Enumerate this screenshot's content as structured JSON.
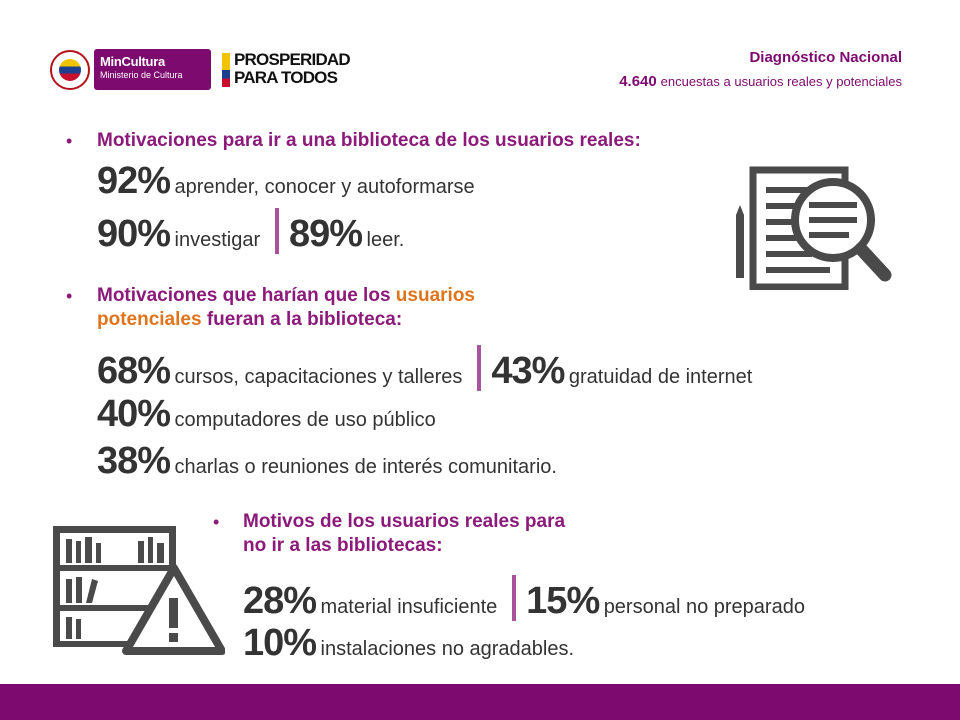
{
  "header": {
    "mincultura_line1": "MinCultura",
    "mincultura_line2": "Ministerio de Cultura",
    "prosperidad_line1": "PROSPERIDAD",
    "prosperidad_line2": "PARA TODOS",
    "title": "Diagnóstico Nacional",
    "subtitle_number": "4.640",
    "subtitle_text": "encuestas a usuarios reales y potenciales"
  },
  "section1": {
    "heading": "Motivaciones para ir a una biblioteca de los usuarios reales:",
    "stats": [
      {
        "pct": "92%",
        "text": "aprender, conocer y autoformarse"
      },
      {
        "pct": "90%",
        "text": "investigar"
      },
      {
        "pct": "89%",
        "text": "leer."
      }
    ]
  },
  "section2": {
    "heading_a": "Motivaciones que harían que los",
    "heading_b": "usuarios",
    "heading_c": "potenciales",
    "heading_d": "fueran a la biblioteca:",
    "stats": [
      {
        "pct": "68%",
        "text": "cursos, capacitaciones y talleres"
      },
      {
        "pct": "43%",
        "text": "gratuidad de internet"
      },
      {
        "pct": "40%",
        "text": "computadores de uso público"
      },
      {
        "pct": "38%",
        "text": "charlas o reuniones de interés comunitario."
      }
    ]
  },
  "section3": {
    "heading_line1": "Motivos de los usuarios reales para",
    "heading_line2": "no ir a las bibliotecas:",
    "stats": [
      {
        "pct": "28%",
        "text": "material insuficiente"
      },
      {
        "pct": "15%",
        "text": "personal no preparado"
      },
      {
        "pct": "10%",
        "text": "instalaciones no agradables."
      }
    ]
  },
  "colors": {
    "brand_purple": "#7d0a6e",
    "bullet_purple": "#8c1a7a",
    "accent_orange": "#e0741c",
    "icon_gray": "#4a4a4a"
  },
  "icons": [
    "document-magnifier-icon",
    "bookshelf-warning-icon",
    "colombia-seal-icon"
  ]
}
